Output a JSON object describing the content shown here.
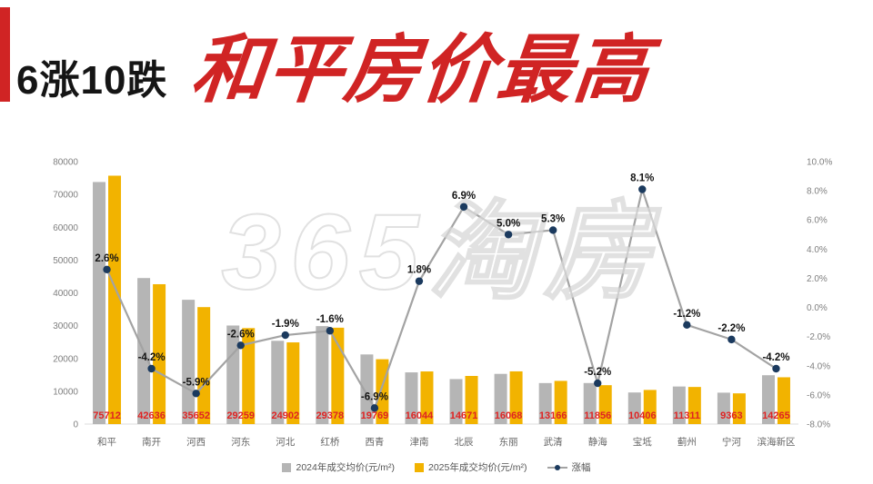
{
  "header": {
    "prefix": "6涨10跌",
    "title": "和平房价最高",
    "accent_color": "#d02424",
    "prefix_color": "#151515"
  },
  "watermark": "365淘房",
  "chart_data": {
    "type": "bar",
    "subtype": "grouped bars with change-percentage line overlay",
    "categories": [
      "和平",
      "南开",
      "河西",
      "河东",
      "河北",
      "红桥",
      "西青",
      "津南",
      "北辰",
      "东丽",
      "武清",
      "静海",
      "宝坻",
      "蓟州",
      "宁河",
      "滨海新区"
    ],
    "series": [
      {
        "name": "2024年成交均价(元/m²)",
        "type": "bar",
        "color": "#b5b5b5",
        "values": [
          73790,
          44510,
          37890,
          30040,
          25380,
          29860,
          21230,
          15760,
          13720,
          15300,
          12500,
          12510,
          9630,
          11450,
          9570,
          14890
        ]
      },
      {
        "name": "2025年成交均价(元/m²)",
        "type": "bar",
        "color": "#f2b300",
        "values": [
          75712,
          42636,
          35652,
          29259,
          24902,
          29378,
          19769,
          16044,
          14671,
          16068,
          13166,
          11856,
          10406,
          11311,
          9363,
          14265
        ]
      },
      {
        "name": "涨幅",
        "type": "line",
        "color": "#a3a3a3",
        "dot_color": "#1b3a5e",
        "values_pct": [
          2.6,
          -4.2,
          -5.9,
          -2.6,
          -1.9,
          -1.6,
          -6.9,
          1.8,
          6.9,
          5.0,
          5.3,
          -5.2,
          8.1,
          -1.2,
          -2.2,
          -4.2
        ]
      }
    ],
    "left_axis": {
      "min": 0,
      "max": 80000,
      "step": 10000
    },
    "right_axis": {
      "min": -8,
      "max": 10,
      "step": 2,
      "suffix": "%"
    },
    "value_label_color": "#e02222",
    "legend_position": "bottom-center",
    "grid": false
  }
}
